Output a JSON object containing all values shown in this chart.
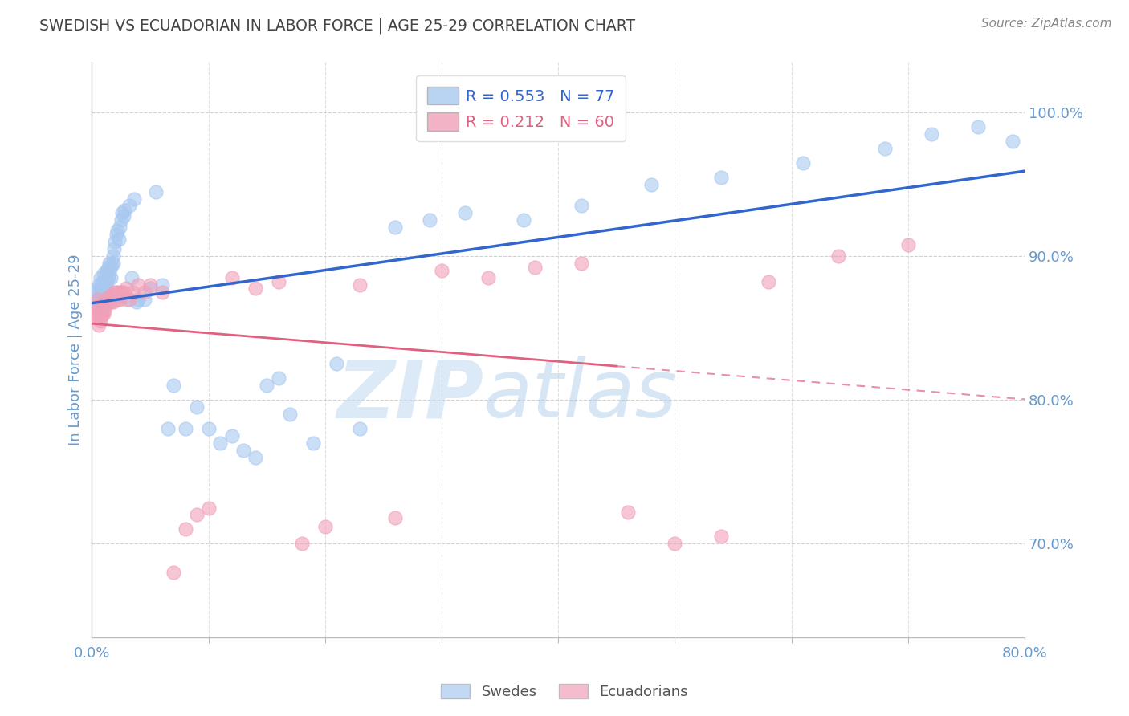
{
  "title": "SWEDISH VS ECUADORIAN IN LABOR FORCE | AGE 25-29 CORRELATION CHART",
  "source_text": "Source: ZipAtlas.com",
  "ylabel": "In Labor Force | Age 25-29",
  "watermark_zip": "ZIP",
  "watermark_atlas": "atlas",
  "legend_blue_r": "R = 0.553",
  "legend_blue_n": "N = 77",
  "legend_pink_r": "R = 0.212",
  "legend_pink_n": "N = 60",
  "legend_blue_label": "Swedes",
  "legend_pink_label": "Ecuadorians",
  "blue_color": "#a8c8f0",
  "pink_color": "#f0a0b8",
  "regression_blue_color": "#3366cc",
  "regression_pink_color": "#e06080",
  "title_color": "#444444",
  "source_color": "#888888",
  "axis_label_color": "#6699cc",
  "tick_label_color": "#6699cc",
  "background_color": "#ffffff",
  "grid_color": "#cccccc",
  "xlim": [
    0.0,
    0.8
  ],
  "ylim": [
    0.635,
    1.035
  ],
  "yticks": [
    0.7,
    0.8,
    0.9,
    1.0
  ],
  "ytick_labels": [
    "70.0%",
    "80.0%",
    "90.0%",
    "100.0%"
  ],
  "xticks": [
    0.0,
    0.8
  ],
  "xtick_labels": [
    "0.0%",
    "80.0%"
  ],
  "blue_x": [
    0.002,
    0.003,
    0.004,
    0.005,
    0.005,
    0.006,
    0.006,
    0.007,
    0.007,
    0.008,
    0.008,
    0.009,
    0.009,
    0.01,
    0.01,
    0.011,
    0.011,
    0.012,
    0.012,
    0.013,
    0.013,
    0.014,
    0.014,
    0.015,
    0.015,
    0.016,
    0.016,
    0.017,
    0.018,
    0.018,
    0.019,
    0.02,
    0.021,
    0.022,
    0.023,
    0.024,
    0.025,
    0.026,
    0.027,
    0.028,
    0.03,
    0.032,
    0.034,
    0.036,
    0.038,
    0.04,
    0.045,
    0.05,
    0.055,
    0.06,
    0.065,
    0.07,
    0.08,
    0.09,
    0.1,
    0.11,
    0.12,
    0.13,
    0.14,
    0.15,
    0.16,
    0.17,
    0.19,
    0.21,
    0.23,
    0.26,
    0.29,
    0.32,
    0.37,
    0.42,
    0.48,
    0.54,
    0.61,
    0.68,
    0.72,
    0.76,
    0.79
  ],
  "blue_y": [
    0.868,
    0.875,
    0.87,
    0.878,
    0.865,
    0.88,
    0.872,
    0.885,
    0.876,
    0.88,
    0.87,
    0.882,
    0.875,
    0.888,
    0.878,
    0.882,
    0.876,
    0.888,
    0.88,
    0.89,
    0.882,
    0.892,
    0.885,
    0.895,
    0.888,
    0.892,
    0.885,
    0.895,
    0.9,
    0.895,
    0.905,
    0.91,
    0.915,
    0.918,
    0.912,
    0.92,
    0.925,
    0.93,
    0.928,
    0.932,
    0.87,
    0.935,
    0.885,
    0.94,
    0.868,
    0.87,
    0.87,
    0.878,
    0.945,
    0.88,
    0.78,
    0.81,
    0.78,
    0.795,
    0.78,
    0.77,
    0.775,
    0.765,
    0.76,
    0.81,
    0.815,
    0.79,
    0.77,
    0.825,
    0.78,
    0.92,
    0.925,
    0.93,
    0.925,
    0.935,
    0.95,
    0.955,
    0.965,
    0.975,
    0.985,
    0.99,
    0.98
  ],
  "pink_x": [
    0.002,
    0.003,
    0.004,
    0.005,
    0.005,
    0.006,
    0.006,
    0.007,
    0.007,
    0.008,
    0.008,
    0.009,
    0.009,
    0.01,
    0.01,
    0.011,
    0.011,
    0.012,
    0.013,
    0.014,
    0.015,
    0.016,
    0.017,
    0.018,
    0.019,
    0.02,
    0.021,
    0.022,
    0.023,
    0.024,
    0.025,
    0.027,
    0.029,
    0.032,
    0.035,
    0.04,
    0.045,
    0.05,
    0.06,
    0.07,
    0.08,
    0.09,
    0.1,
    0.12,
    0.14,
    0.16,
    0.18,
    0.2,
    0.23,
    0.26,
    0.3,
    0.34,
    0.38,
    0.42,
    0.46,
    0.5,
    0.54,
    0.58,
    0.64,
    0.7
  ],
  "pink_y": [
    0.858,
    0.865,
    0.858,
    0.862,
    0.87,
    0.858,
    0.852,
    0.86,
    0.855,
    0.862,
    0.858,
    0.865,
    0.86,
    0.868,
    0.86,
    0.865,
    0.862,
    0.868,
    0.87,
    0.868,
    0.872,
    0.868,
    0.872,
    0.868,
    0.875,
    0.872,
    0.875,
    0.87,
    0.875,
    0.87,
    0.875,
    0.875,
    0.878,
    0.87,
    0.875,
    0.88,
    0.875,
    0.88,
    0.875,
    0.68,
    0.71,
    0.72,
    0.725,
    0.885,
    0.878,
    0.882,
    0.7,
    0.712,
    0.88,
    0.718,
    0.89,
    0.885,
    0.892,
    0.895,
    0.722,
    0.7,
    0.705,
    0.882,
    0.9,
    0.908
  ]
}
